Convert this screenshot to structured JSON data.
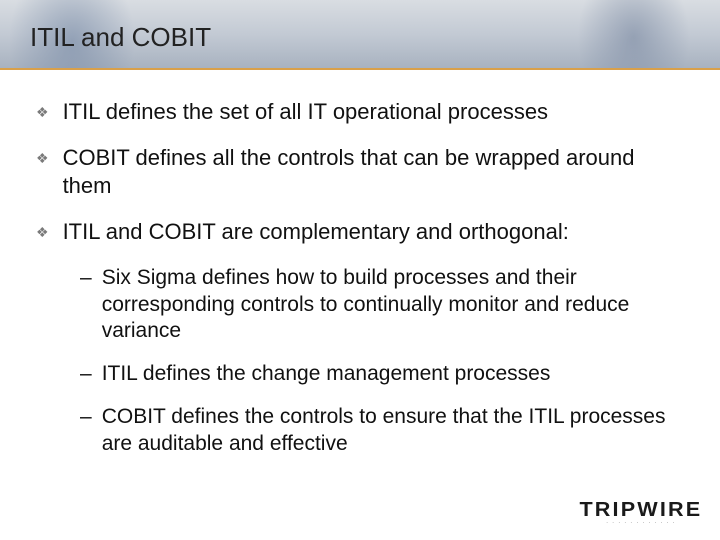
{
  "slide": {
    "title": "ITIL and COBIT",
    "title_fontsize": 26,
    "title_color": "#222222",
    "banner_gradient_top": "#d9dde2",
    "banner_gradient_mid": "#c3cad4",
    "banner_gradient_bottom": "#a8b2c0",
    "banner_border_color": "#d9a04a",
    "background_color": "#ffffff"
  },
  "bullets": {
    "items": [
      {
        "text": "ITIL defines the set of all IT operational processes"
      },
      {
        "text": "COBIT defines all the controls that can be wrapped around them"
      },
      {
        "text": "ITIL and COBIT are complementary and orthogonal:"
      }
    ],
    "bullet_glyph": "❖",
    "bullet_color": "#7a7a7a",
    "fontsize": 22,
    "text_color": "#111111"
  },
  "subbullets": {
    "items": [
      {
        "text": "Six Sigma defines how to build processes and their corresponding controls to continually monitor and reduce variance"
      },
      {
        "text": "ITIL defines the change management processes"
      },
      {
        "text": "COBIT defines the controls to ensure that the ITIL processes are auditable and effective"
      }
    ],
    "dash_glyph": "–",
    "fontsize": 21,
    "text_color": "#111111"
  },
  "logo": {
    "text": "TRIPWIRE",
    "subtext": "· · · · · · · · · · · ·",
    "text_color": "#1a1a1a"
  }
}
